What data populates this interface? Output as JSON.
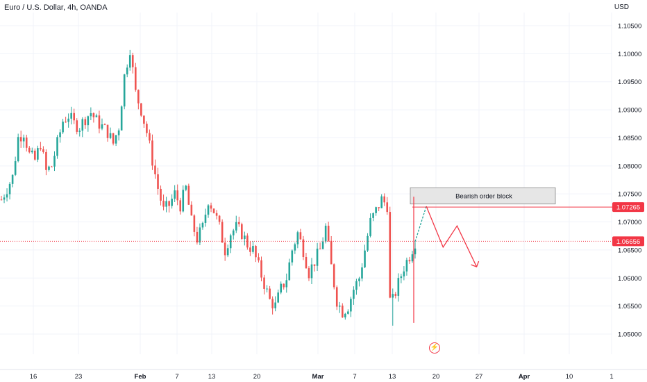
{
  "header": {
    "title": "Euro / U.S. Dollar, 4h, OANDA",
    "currency": "USD"
  },
  "colors": {
    "up": "#26a69a",
    "down": "#ef5350",
    "grid": "#f0f3fa",
    "axis_text": "#131722",
    "price_line": "#f23645",
    "current_price_bg": "#f23645",
    "ob_fill": "#e6e6e6",
    "projection_up": "#26a69a",
    "projection_down": "#f23645"
  },
  "chart_data": {
    "type": "candlestick",
    "symbol": "EURUSD",
    "timeframe": "4h",
    "y_range": [
      1.0445,
      1.1085
    ],
    "y_ticks": [
      "1.10500",
      "1.10000",
      "1.09500",
      "1.09000",
      "1.08500",
      "1.08000",
      "1.07500",
      "1.07000",
      "1.06500",
      "1.06000",
      "1.05500",
      "1.05000"
    ],
    "x_ticks": [
      "16",
      "23",
      "Feb",
      "7",
      "13",
      "20",
      "Mar",
      "7",
      "13",
      "20",
      "27",
      "Apr",
      "10",
      "1"
    ],
    "price_levels": [
      {
        "label": "1.07265",
        "value": 1.07265,
        "style": "solid"
      },
      {
        "label": "1.06656",
        "value": 1.06656,
        "style": "dotted"
      }
    ],
    "order_block": {
      "label": "Bearish order block",
      "top": 1.0761,
      "bottom": 1.0732
    },
    "price_path": [
      [
        0,
        1.074
      ],
      [
        2,
        1.076
      ],
      [
        4,
        1.078
      ],
      [
        6,
        1.085
      ],
      [
        8,
        1.086
      ],
      [
        10,
        1.082
      ],
      [
        12,
        1.081
      ],
      [
        14,
        1.084
      ],
      [
        16,
        1.079
      ],
      [
        18,
        1.08
      ],
      [
        20,
        1.084
      ],
      [
        22,
        1.088
      ],
      [
        24,
        1.089
      ],
      [
        26,
        1.0875
      ],
      [
        28,
        1.087
      ],
      [
        30,
        1.0885
      ],
      [
        32,
        1.0895
      ],
      [
        34,
        1.088
      ],
      [
        36,
        1.087
      ],
      [
        38,
        1.086
      ],
      [
        40,
        1.084
      ],
      [
        42,
        1.087
      ],
      [
        44,
        1.096
      ],
      [
        46,
        1.101
      ],
      [
        48,
        1.093
      ],
      [
        50,
        1.09
      ],
      [
        52,
        1.086
      ],
      [
        54,
        1.081
      ],
      [
        56,
        1.076
      ],
      [
        58,
        1.072
      ],
      [
        60,
        1.073
      ],
      [
        62,
        1.075
      ],
      [
        64,
        1.073
      ],
      [
        66,
        1.076
      ],
      [
        68,
        1.07
      ],
      [
        70,
        1.067
      ],
      [
        72,
        1.069
      ],
      [
        74,
        1.074
      ],
      [
        76,
        1.072
      ],
      [
        78,
        1.069
      ],
      [
        80,
        1.065
      ],
      [
        82,
        1.068
      ],
      [
        84,
        1.069
      ],
      [
        86,
        1.068
      ],
      [
        88,
        1.066
      ],
      [
        90,
        1.065
      ],
      [
        92,
        1.062
      ],
      [
        94,
        1.059
      ],
      [
        96,
        1.056
      ],
      [
        98,
        1.055
      ],
      [
        100,
        1.058
      ],
      [
        102,
        1.06
      ],
      [
        104,
        1.065
      ],
      [
        106,
        1.068
      ],
      [
        108,
        1.065
      ],
      [
        110,
        1.061
      ],
      [
        112,
        1.063
      ],
      [
        114,
        1.065
      ],
      [
        116,
        1.069
      ],
      [
        118,
        1.062
      ],
      [
        120,
        1.056
      ],
      [
        122,
        1.054
      ],
      [
        124,
        1.055
      ],
      [
        126,
        1.058
      ],
      [
        128,
        1.06
      ],
      [
        130,
        1.065
      ],
      [
        132,
        1.07
      ],
      [
        134,
        1.072
      ],
      [
        136,
        1.074
      ],
      [
        138,
        1.073
      ],
      [
        140,
        1.056
      ],
      [
        142,
        1.059
      ],
      [
        144,
        1.062
      ],
      [
        146,
        1.064
      ],
      [
        148,
        1.0665
      ]
    ],
    "projection": [
      [
        148,
        1.0665
      ],
      [
        152,
        1.0728
      ],
      [
        158,
        1.0655
      ],
      [
        163,
        1.0693
      ],
      [
        170,
        1.062
      ]
    ]
  }
}
